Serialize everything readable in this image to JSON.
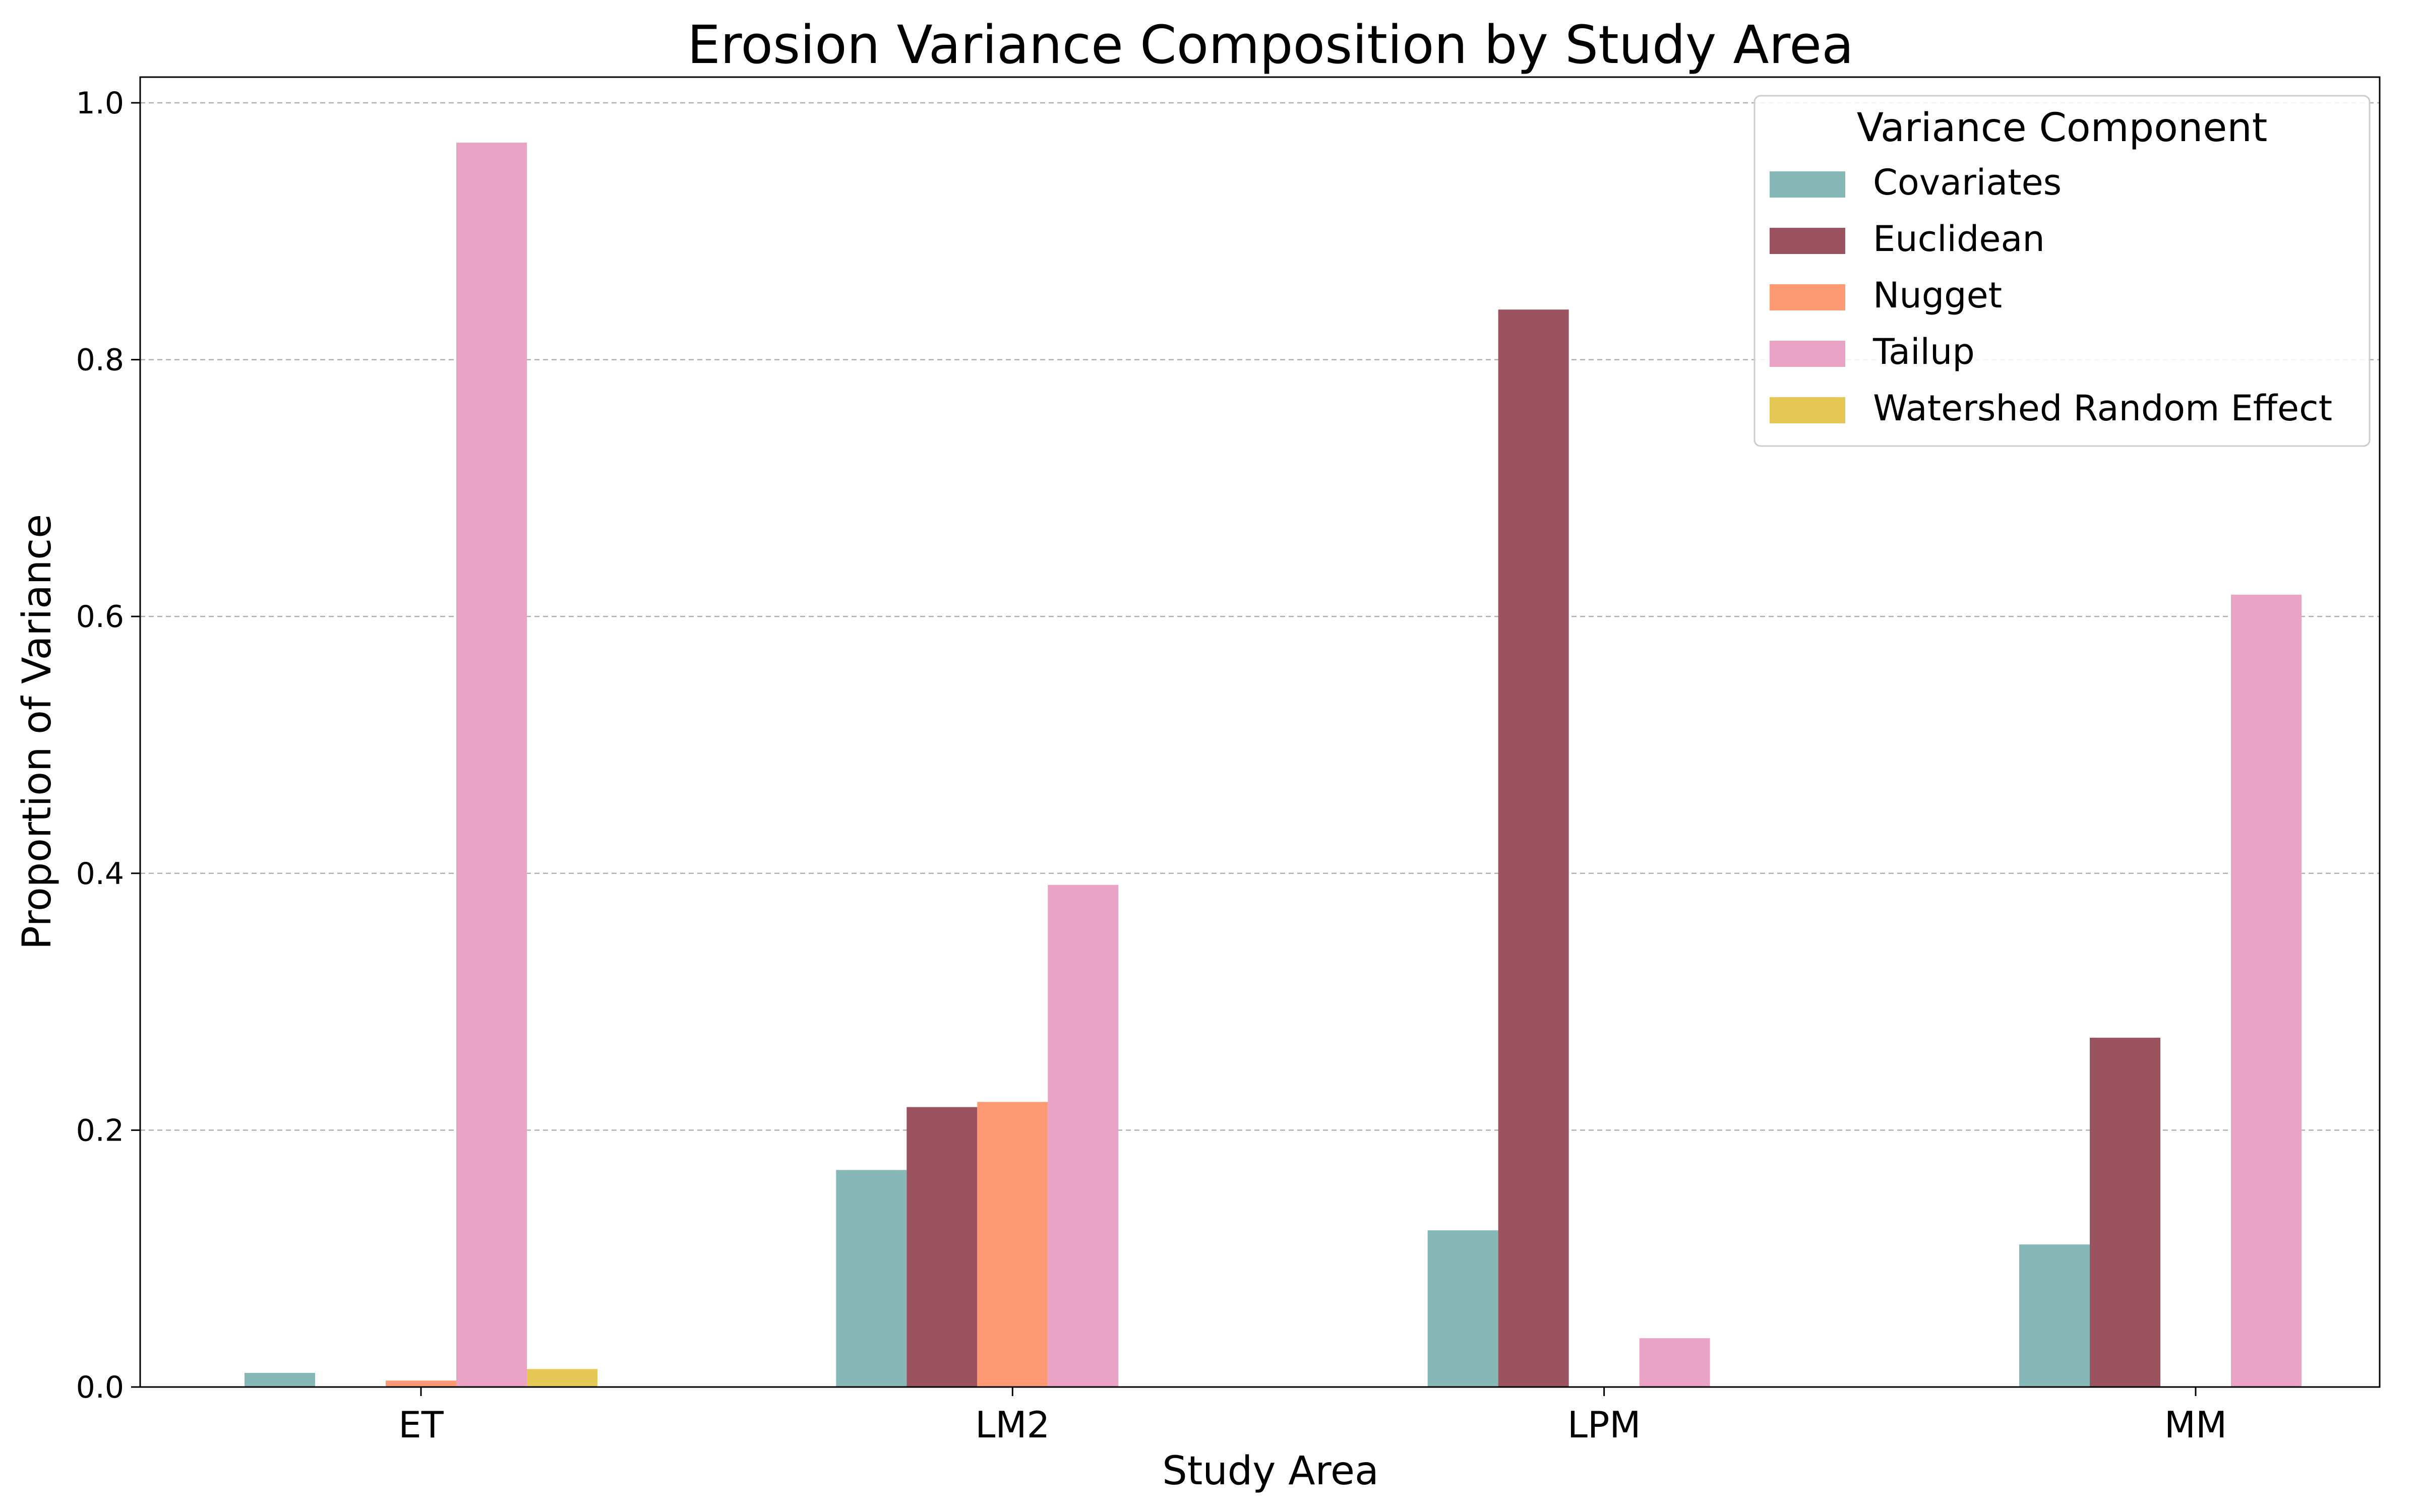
{
  "chart_data": {
    "type": "bar",
    "title": "Erosion Variance Composition by Study Area",
    "xlabel": "Study Area",
    "ylabel": "Proportion of Variance",
    "categories": [
      "ET",
      "LM2",
      "LPM",
      "MM"
    ],
    "ylim": [
      0,
      1.02
    ],
    "yticks": [
      "0.0",
      "0.2",
      "0.4",
      "0.6",
      "0.8",
      "1.0"
    ],
    "grid": "horizontal dashed",
    "legend": {
      "title": "Variance Component",
      "placement": "top-right"
    },
    "series": [
      {
        "name": "Covariates",
        "color": "#86b8b8",
        "values": [
          0.011,
          0.169,
          0.122,
          0.111
        ]
      },
      {
        "name": "Euclidean",
        "color": "#9b545f",
        "values": [
          0.0,
          0.218,
          0.839,
          0.272
        ]
      },
      {
        "name": "Nugget",
        "color": "#fe9a73",
        "values": [
          0.005,
          0.222,
          0.0,
          0.0
        ]
      },
      {
        "name": "Tailup",
        "color": "#e9a3c5",
        "values": [
          0.969,
          0.391,
          0.038,
          0.617
        ]
      },
      {
        "name": "Watershed Random Effect",
        "color": "#e5c756",
        "values": [
          0.014,
          0.0,
          0.0,
          0.0
        ]
      }
    ]
  }
}
